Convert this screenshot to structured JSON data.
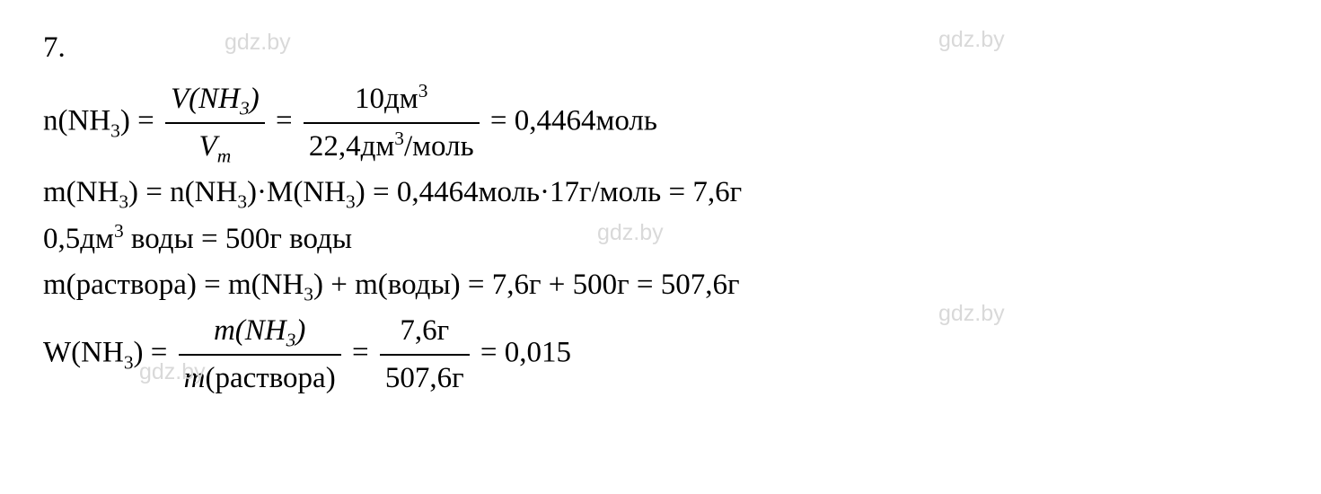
{
  "problem_number": "7.",
  "watermark": "gdz.by",
  "colors": {
    "text": "#000000",
    "background": "#ffffff",
    "watermark": "#d9d9d9"
  },
  "fonts": {
    "body_family": "Times New Roman",
    "body_size_pt": 25,
    "watermark_family": "Arial",
    "watermark_size_pt": 19
  },
  "line1": {
    "lhs_prefix": "n(NH",
    "lhs_sub": "3",
    "lhs_suffix": ") = ",
    "frac1": {
      "num_a": "V(NH",
      "num_sub": "3",
      "num_b": ")",
      "den_a": "V",
      "den_sub": "m"
    },
    "mid": " = ",
    "frac2": {
      "num_a": "10дм",
      "num_sup": "3",
      "den_a": "22,4дм",
      "den_sup": "3",
      "den_b": "/моль"
    },
    "rhs": " = 0,4464моль"
  },
  "line2": {
    "a": "m(NH",
    "a_sub": "3",
    "b": ") = n(NH",
    "b_sub": "3",
    "c": ")·M(NH",
    "c_sub": "3",
    "d": ") = 0,4464моль·17г/моль = 7,6г"
  },
  "line3": {
    "a": "0,5дм",
    "a_sup": "3",
    "b": " воды = 500г воды"
  },
  "line4": {
    "a": "m(раствора) = m(NH",
    "a_sub": "3",
    "b": ") + m(воды) = 7,6г + 500г = 507,6г"
  },
  "line5": {
    "lhs_a": "W(NH",
    "lhs_sub": "3",
    "lhs_b": ") = ",
    "frac1": {
      "num_a": "m(NH",
      "num_sub": "3",
      "num_b": ")",
      "den": "m(раствора)"
    },
    "mid": " = ",
    "frac2": {
      "num": "7,6г",
      "den": "507,6г"
    },
    "rhs": " = 0,015"
  }
}
